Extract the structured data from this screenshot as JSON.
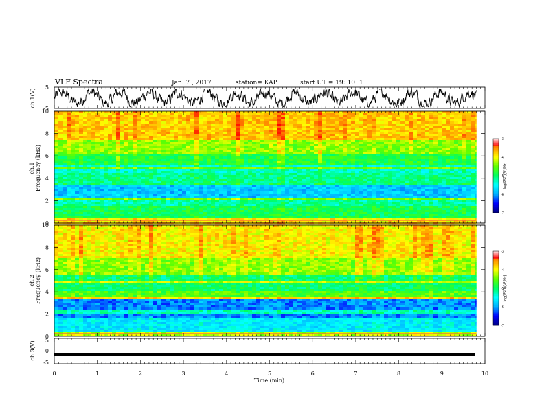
{
  "header": {
    "title": "VLF Spectra",
    "date": "Jan. 7 , 2017",
    "station": "station= KAP",
    "start": "start UT =  19: 10: 1"
  },
  "colors": {
    "ch1_trace": "#000000",
    "ch3_trace": "#000000",
    "colormap": [
      "#00007f",
      "#0000ff",
      "#00b0ff",
      "#00ffff",
      "#00ff60",
      "#60ff00",
      "#ffff00",
      "#ff9000",
      "#ff0000",
      "#ffa0a0",
      "#ffffff"
    ]
  },
  "chart_data": [
    {
      "type": "line",
      "ylabel": "ch.1(V)",
      "ylim": [
        -5,
        5
      ],
      "yticks": [
        "5",
        "-5"
      ],
      "xlim": [
        0,
        10
      ],
      "description_series": "noisy oscillating voltage trace between about -4 and 4 V",
      "values_summary": {
        "min": -4.3,
        "max": 4.2
      }
    },
    {
      "type": "heatmap",
      "ylabel": "ch.1\nFrequency (kHz)",
      "ylabel_lines": [
        "ch.1",
        "Frequency (kHz)"
      ],
      "ylim": [
        0,
        10
      ],
      "yticks": [
        "0",
        "2",
        "4",
        "6",
        "8",
        "10"
      ],
      "xlim": [
        0,
        9.8
      ],
      "colorbar": {
        "label": "log(PSD)(V²/Hz)",
        "range": [
          -7,
          -3
        ],
        "ticks": [
          "-3",
          "-4",
          "-5",
          "-6",
          "-7"
        ]
      },
      "bands": [
        {
          "from": 0,
          "to": 0.5,
          "level": -3.9
        },
        {
          "from": 0.5,
          "to": 1.5,
          "level": -4.9
        },
        {
          "from": 1.5,
          "to": 2.3,
          "level": -5.2
        },
        {
          "from": 2.3,
          "to": 3.6,
          "level": -5.8
        },
        {
          "from": 3.6,
          "to": 4.4,
          "level": -5.1
        },
        {
          "from": 4.4,
          "to": 5.2,
          "level": -5.3
        },
        {
          "from": 5.2,
          "to": 6.2,
          "level": -4.8
        },
        {
          "from": 6.2,
          "to": 7.5,
          "level": -4.3
        },
        {
          "from": 7.5,
          "to": 10,
          "level": -3.7
        }
      ]
    },
    {
      "type": "heatmap",
      "ylabel": "ch.2\nFrequency (kHz)",
      "ylabel_lines": [
        "ch.2",
        "Frequency (kHz)"
      ],
      "ylim": [
        0,
        10
      ],
      "yticks": [
        "0",
        "2",
        "4",
        "6",
        "8",
        "10"
      ],
      "xlim": [
        0,
        9.8
      ],
      "colorbar": {
        "label": "log(PSD)(V²/Hz)",
        "range": [
          -7,
          -3
        ],
        "ticks": [
          "-3",
          "-4",
          "-5",
          "-6",
          "-7"
        ]
      },
      "bands": [
        {
          "from": 0,
          "to": 0.4,
          "level": -4.2
        },
        {
          "from": 0.4,
          "to": 1.6,
          "level": -5.6
        },
        {
          "from": 1.6,
          "to": 3.4,
          "level": -6.1
        },
        {
          "from": 3.4,
          "to": 4.0,
          "level": -4.6
        },
        {
          "from": 4.0,
          "to": 5.5,
          "level": -5.0
        },
        {
          "from": 5.5,
          "to": 7.0,
          "level": -4.3
        },
        {
          "from": 7.0,
          "to": 10,
          "level": -3.9
        }
      ]
    },
    {
      "type": "line",
      "ylabel": "ch.3(V)",
      "ylim": [
        -5,
        5
      ],
      "yticks": [
        "5",
        "0",
        "-5"
      ],
      "xlim": [
        0,
        10
      ],
      "xlabel": "Time (min)",
      "xticks": [
        "0",
        "1",
        "2",
        "3",
        "4",
        "5",
        "6",
        "7",
        "8",
        "9",
        "10"
      ],
      "values_summary": {
        "constant": -1.5
      }
    }
  ]
}
